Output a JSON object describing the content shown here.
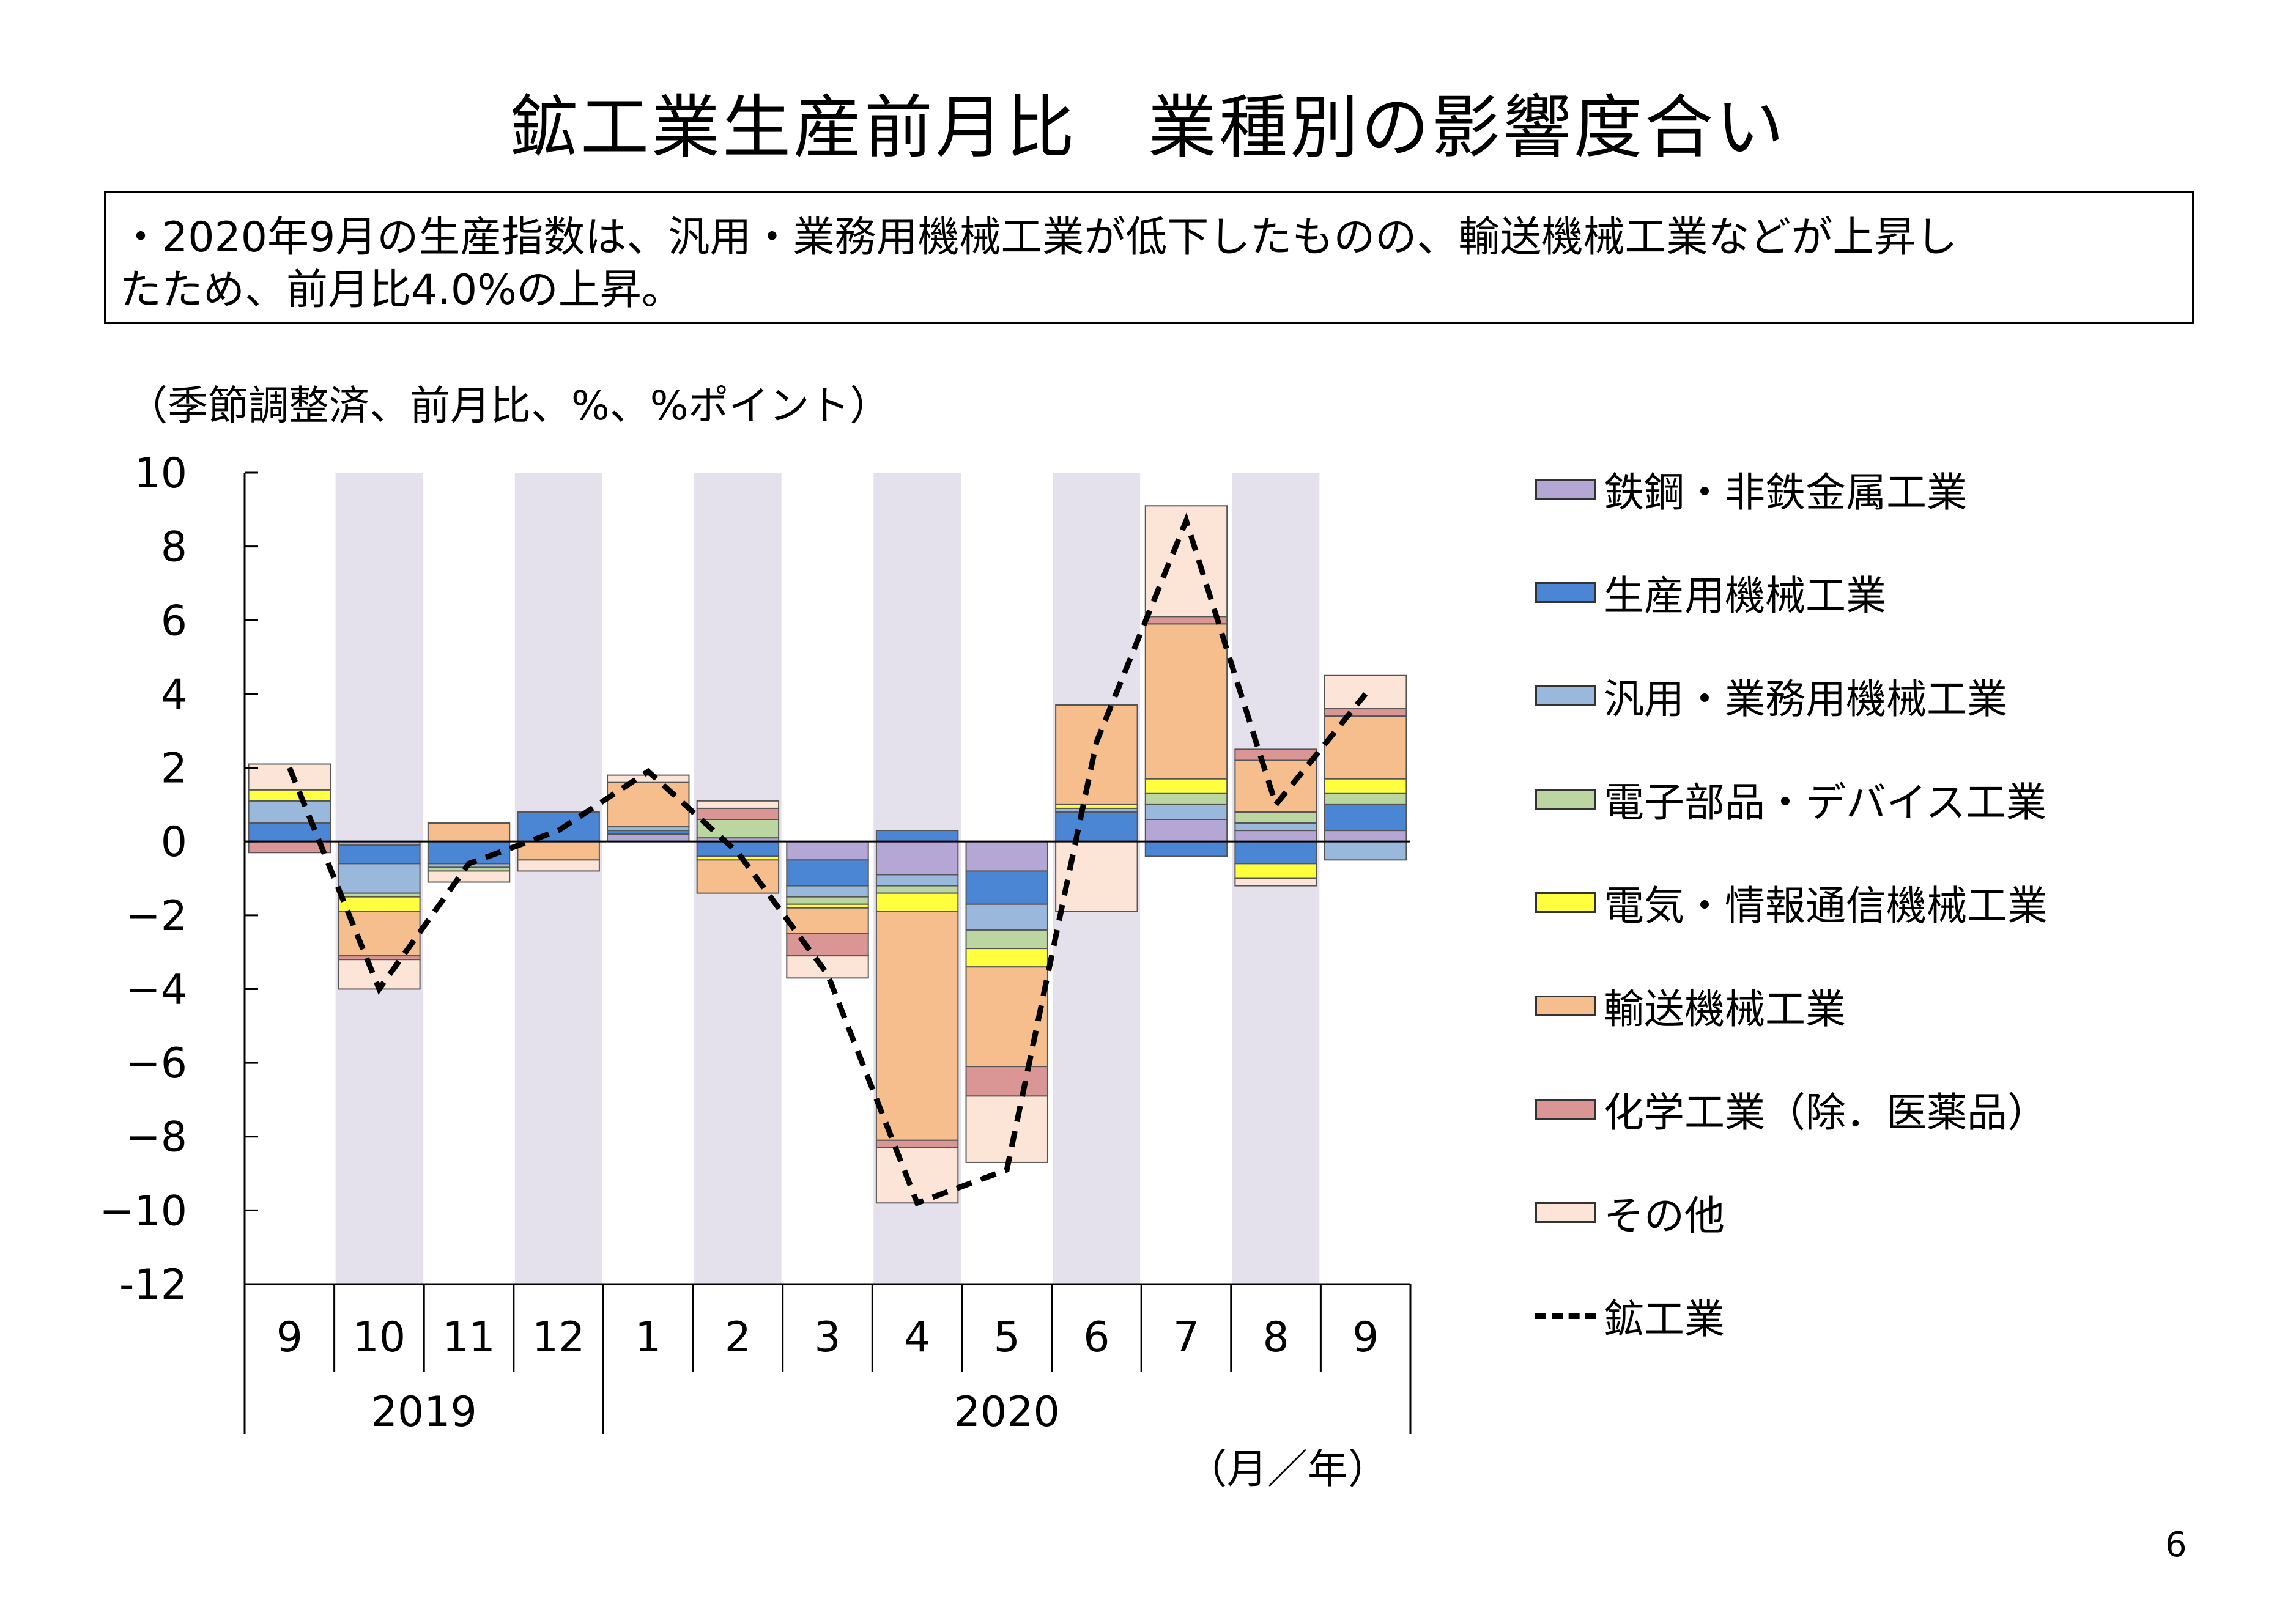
{
  "page": {
    "title": "鉱工業生産前月比　業種別の影響度合い",
    "summary_lines": [
      "・2020年9月の生産指数は、汎用・業務用機械工業が低下したものの、輸送機械工業などが上昇し",
      "たため、前月比4.0%の上昇。"
    ],
    "unit_label": "（季節調整済、前月比、%、%ポイント）",
    "page_number": "6"
  },
  "chart_data": {
    "type": "bar",
    "stacked": true,
    "categories": [
      "9",
      "10",
      "11",
      "12",
      "1",
      "2",
      "3",
      "4",
      "5",
      "6",
      "7",
      "8",
      "9"
    ],
    "year_labels": [
      {
        "label": "2019",
        "months": [
          "9",
          "10",
          "11",
          "12"
        ]
      },
      {
        "label": "2020",
        "months": [
          "1",
          "2",
          "3",
          "4",
          "5",
          "6",
          "7",
          "8",
          "9"
        ]
      }
    ],
    "x_unit_label": "（月／年）",
    "ylim": [
      -12,
      10
    ],
    "yticks": [
      10,
      8,
      6,
      4,
      2,
      0,
      -2,
      -4,
      -6,
      -8,
      -10,
      -12
    ],
    "ytick_labels": [
      "10",
      "8",
      "6",
      "4",
      "2",
      "0",
      "−2",
      "−4",
      "−6",
      "−8",
      "−10",
      "-12"
    ],
    "shaded_categories": [
      1,
      3,
      5,
      7,
      9,
      11
    ],
    "shade_color": "#e4e0ec",
    "legend_placement": "right",
    "series": [
      {
        "name": "鉄鋼・非鉄金属工業",
        "color": "#b4a7d6",
        "values": [
          0.0,
          -0.1,
          0.0,
          0.0,
          0.2,
          0.1,
          -0.5,
          -0.9,
          -0.8,
          0.0,
          0.6,
          0.3,
          0.3
        ]
      },
      {
        "name": "生産用機械工業",
        "color": "#4a86d4",
        "values": [
          0.5,
          -0.5,
          -0.6,
          0.8,
          0.1,
          -0.4,
          -0.7,
          0.3,
          -0.9,
          0.8,
          -0.4,
          -0.6,
          0.7
        ]
      },
      {
        "name": "汎用・業務用機械工業",
        "color": "#9ab8dc",
        "values": [
          0.6,
          -0.8,
          -0.1,
          0.0,
          0.1,
          0.0,
          -0.3,
          -0.3,
          -0.7,
          0.1,
          0.4,
          0.2,
          -0.5
        ]
      },
      {
        "name": "電子部品・デバイス工業",
        "color": "#bcd6a2",
        "values": [
          0.0,
          -0.1,
          -0.1,
          0.0,
          0.0,
          0.5,
          -0.2,
          -0.2,
          -0.5,
          0.0,
          0.3,
          0.3,
          0.3
        ]
      },
      {
        "name": "電気・情報通信機械工業",
        "color": "#ffff40",
        "values": [
          0.3,
          -0.4,
          0.0,
          0.0,
          0.0,
          -0.1,
          -0.1,
          -0.5,
          -0.5,
          0.1,
          0.4,
          -0.4,
          0.4
        ]
      },
      {
        "name": "輸送機械工業",
        "color": "#f6bd8d",
        "values": [
          0.0,
          -1.2,
          0.5,
          -0.5,
          1.2,
          -0.9,
          -0.7,
          -6.2,
          -2.7,
          2.7,
          4.2,
          1.4,
          1.7
        ]
      },
      {
        "name": "化学工業（除．医薬品）",
        "color": "#da9694",
        "values": [
          -0.3,
          -0.1,
          0.0,
          0.0,
          0.0,
          0.3,
          -0.6,
          -0.2,
          -0.8,
          0.0,
          0.2,
          0.3,
          0.2
        ]
      },
      {
        "name": "その他",
        "color": "#fce4d6",
        "values": [
          0.7,
          -0.8,
          -0.3,
          -0.3,
          0.2,
          0.2,
          -0.6,
          -1.5,
          -1.8,
          -1.9,
          3.0,
          -0.2,
          0.9
        ]
      }
    ],
    "line_series": {
      "name": "鉱工業",
      "color": "#000000",
      "style": "dashed",
      "values": [
        2.0,
        -4.0,
        -0.6,
        0.3,
        1.9,
        -0.3,
        -3.6,
        -9.8,
        -8.9,
        2.7,
        8.7,
        1.0,
        4.0
      ]
    }
  }
}
